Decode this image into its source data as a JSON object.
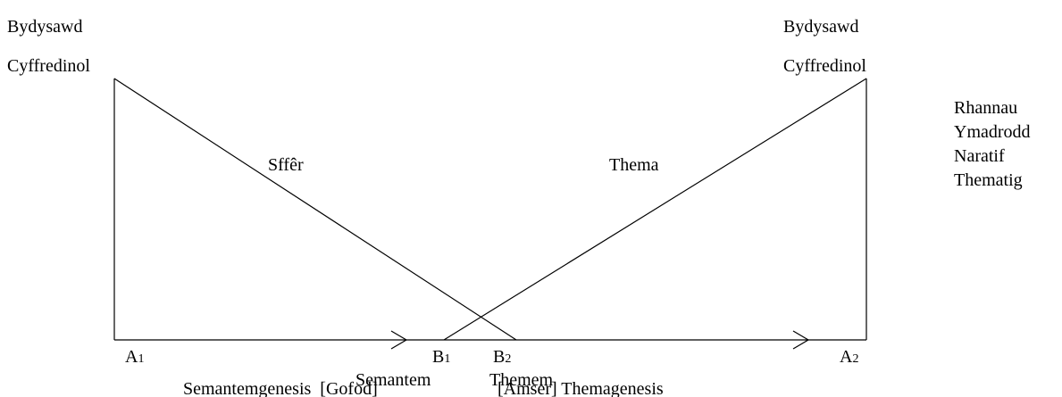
{
  "left_top": {
    "line1": "Bydysawd",
    "line2": "Cyffredinol"
  },
  "right_top": {
    "line1": "Bydysawd",
    "line2": "Cyffredinol"
  },
  "diagonals": {
    "left": "Sffêr",
    "right": "Thema"
  },
  "side_list": [
    "Rhannau",
    "Ymadrodd",
    "Naratif",
    "Thematig"
  ],
  "points": [
    {
      "label": "A",
      "sub": "1"
    },
    {
      "label": "B",
      "sub": "1"
    },
    {
      "label": "B",
      "sub": "2"
    },
    {
      "label": "A",
      "sub": "2"
    }
  ],
  "bottom": {
    "semantem": "Semantem",
    "themem": "Themem",
    "left_caption": "Semantemgenesis  [Gofod]",
    "right_caption": "[Amser] Themagenesis"
  }
}
